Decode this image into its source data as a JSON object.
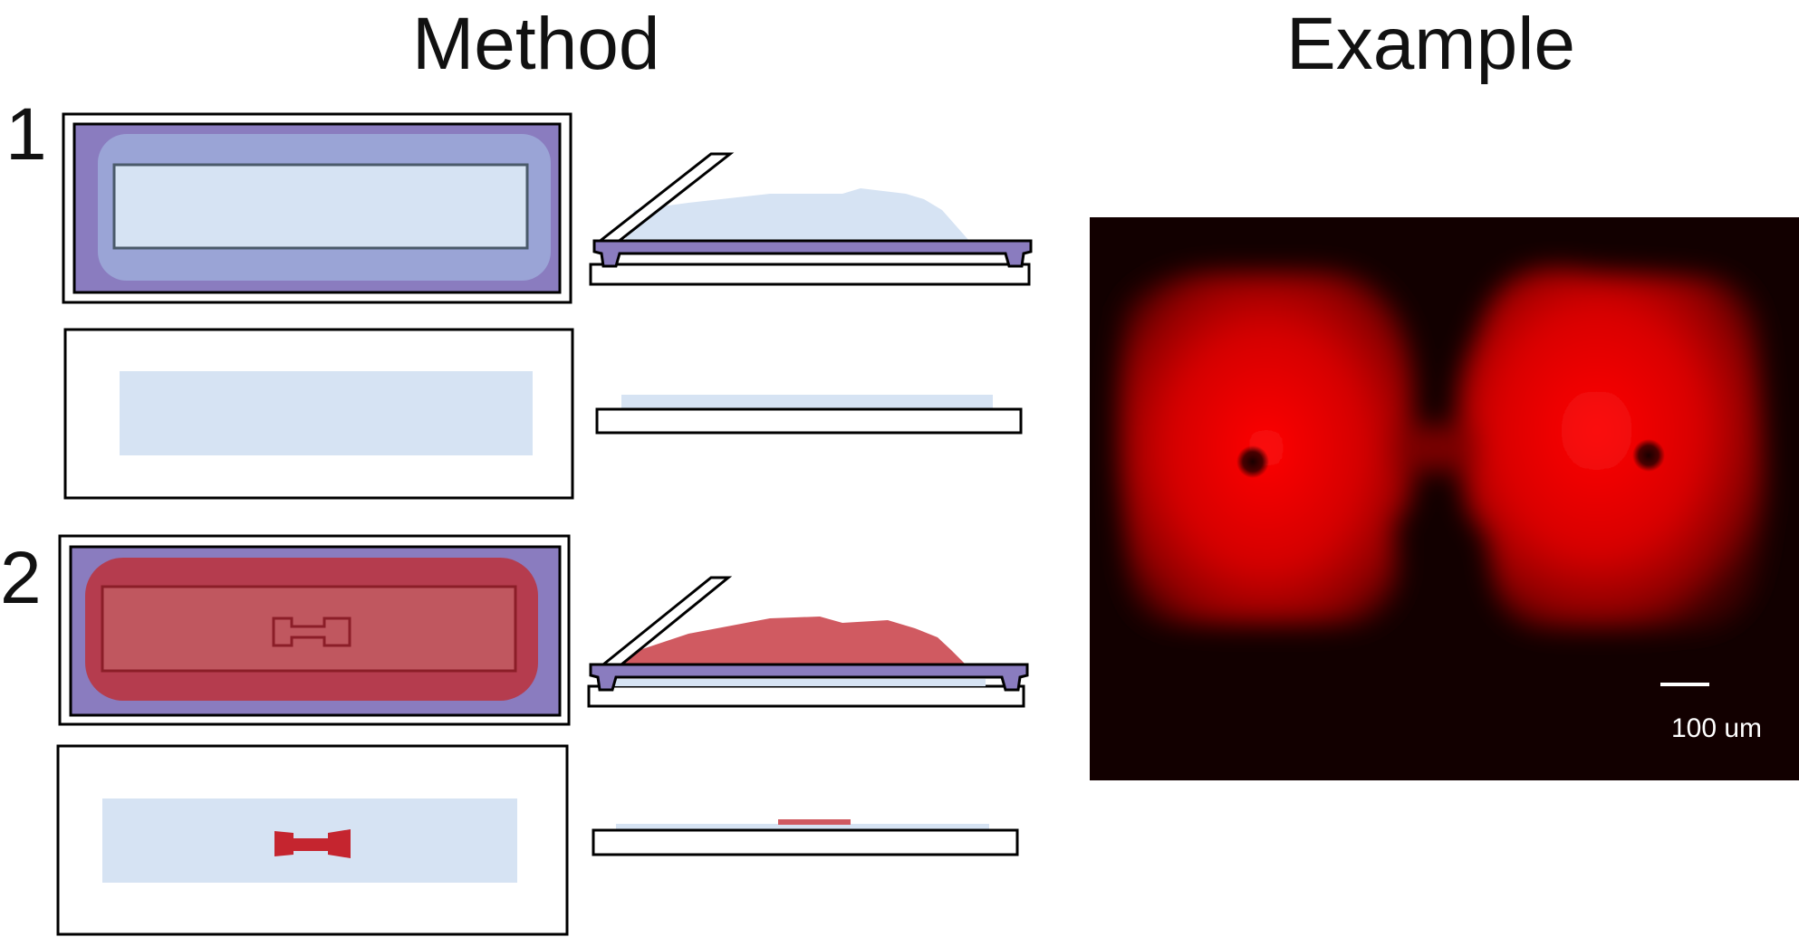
{
  "headings": {
    "method": "Method",
    "example": "Example"
  },
  "steps": {
    "step1": "1",
    "step2": "2"
  },
  "example_image": {
    "scale_bar_label": "100 um"
  },
  "colors": {
    "stamp_purple": "#8a7cbf",
    "stamp_purple_light": "#9aa4d6",
    "coverslip_blue": "#d6e3f3",
    "protein_red": "#d05a61",
    "pattern_red": "#c5252f",
    "fluor_background": "#120000"
  }
}
